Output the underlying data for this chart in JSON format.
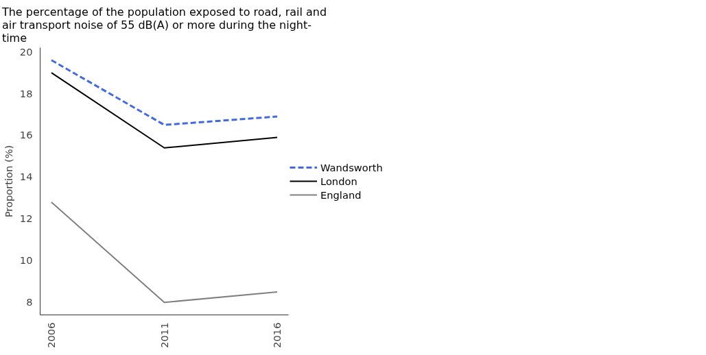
{
  "chart_data": {
    "type": "line",
    "title": "The percentage of the population exposed to road, rail and\nair transport noise of 55 dB(A) or more during the night-\ntime",
    "ylabel": "Proportion (%)",
    "x": [
      2006,
      2011,
      2016
    ],
    "xlim": [
      2005.5,
      2016.5
    ],
    "xticks": [
      2006,
      2011,
      2016
    ],
    "ylim": [
      7.4,
      20.2
    ],
    "yticks": [
      8,
      10,
      12,
      14,
      16,
      18,
      20
    ],
    "grid": false,
    "legend": "right",
    "series": [
      {
        "name": "Wandsworth",
        "color": "#4169e1",
        "line_style": "dashed",
        "values": [
          19.6,
          16.5,
          16.9
        ]
      },
      {
        "name": "London",
        "color": "#000000",
        "line_style": "solid",
        "values": [
          19.0,
          15.4,
          15.9
        ]
      },
      {
        "name": "England",
        "color": "#808080",
        "line_style": "solid",
        "values": [
          12.8,
          8.0,
          8.5
        ]
      }
    ]
  }
}
